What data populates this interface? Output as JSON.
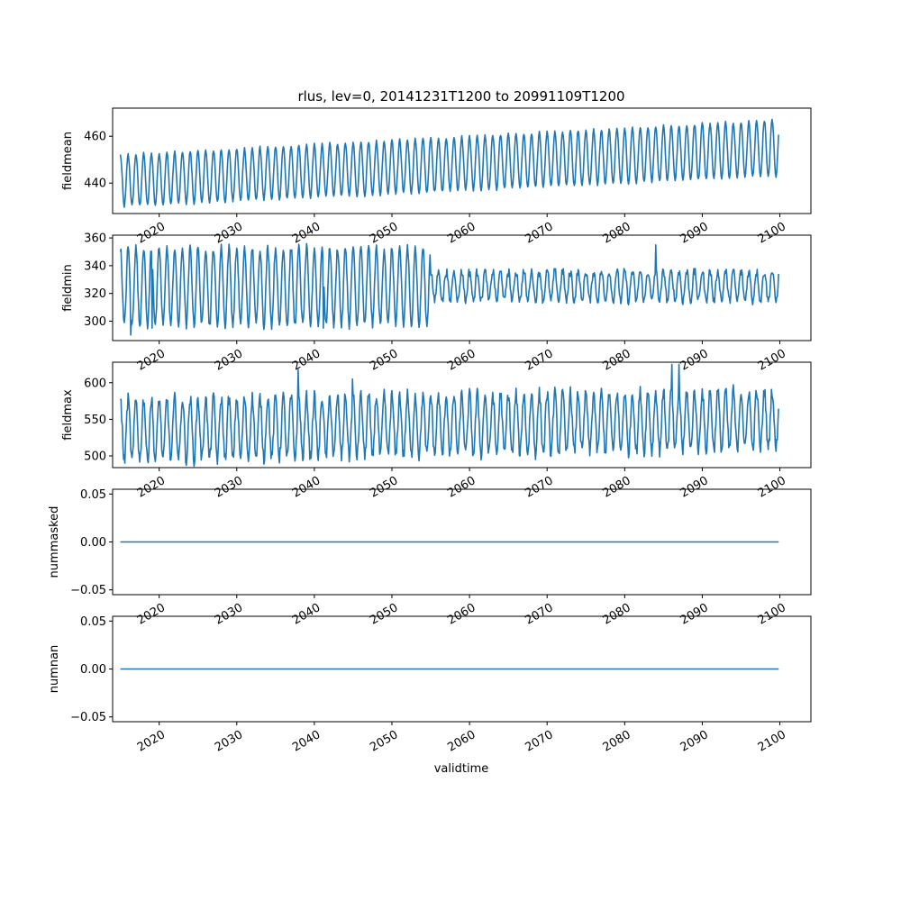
{
  "figure": {
    "title": "rlus, lev=0, 20141231T1200 to 20991109T1200",
    "xlabel": "validtime",
    "line_color": "#1f77b4"
  },
  "chart_data": [
    {
      "type": "line",
      "ylabel": "fieldmean",
      "xlim": [
        2014.0,
        2104.0
      ],
      "ylim": [
        427,
        472
      ],
      "yticks": [
        440,
        460
      ],
      "ytick_labels": [
        "440",
        "460"
      ],
      "xticks": [
        2020,
        2030,
        2040,
        2050,
        2060,
        2070,
        2080,
        2090,
        2100
      ],
      "xtick_labels": [
        "2020",
        "2030",
        "2040",
        "2050",
        "2060",
        "2070",
        "2080",
        "2090",
        "2100"
      ],
      "series_model": {
        "kind": "seasonal",
        "start": 2015.0,
        "end": 2099.85,
        "samples_per_year": 12,
        "base_start": 441,
        "base_end": 455,
        "amp_start": 11,
        "amp_end": 12,
        "noise": 0.6,
        "spikes": []
      }
    },
    {
      "type": "line",
      "ylabel": "fieldmin",
      "xlim": [
        2014.0,
        2104.0
      ],
      "ylim": [
        286,
        362
      ],
      "yticks": [
        300,
        320,
        340,
        360
      ],
      "ytick_labels": [
        "300",
        "320",
        "340",
        "360"
      ],
      "xticks": [
        2020,
        2030,
        2040,
        2050,
        2060,
        2070,
        2080,
        2090,
        2100
      ],
      "xtick_labels": [
        "2020",
        "2030",
        "2040",
        "2050",
        "2060",
        "2070",
        "2080",
        "2090",
        "2100"
      ],
      "series_model": {
        "kind": "fieldmin",
        "start": 2015.0,
        "end": 2099.85,
        "samples_per_year": 12,
        "early_base": 325,
        "early_amp": 28,
        "break_year": 2055,
        "late_base": 326,
        "late_amp": 9,
        "noise": 3,
        "spikes": [
          [
            2084.0,
            355
          ],
          [
            2016.3,
            290
          ],
          [
            2019.1,
            295
          ],
          [
            2041.2,
            295
          ]
        ]
      }
    },
    {
      "type": "line",
      "ylabel": "fieldmax",
      "xlim": [
        2014.0,
        2104.0
      ],
      "ylim": [
        484,
        628
      ],
      "yticks": [
        500,
        550,
        600
      ],
      "ytick_labels": [
        "500",
        "550",
        "600"
      ],
      "xticks": [
        2020,
        2030,
        2040,
        2050,
        2060,
        2070,
        2080,
        2090,
        2100
      ],
      "xtick_labels": [
        "2020",
        "2030",
        "2040",
        "2050",
        "2060",
        "2070",
        "2080",
        "2090",
        "2100"
      ],
      "series_model": {
        "kind": "seasonal",
        "start": 2015.0,
        "end": 2099.85,
        "samples_per_year": 12,
        "base_start": 535,
        "base_end": 550,
        "amp_start": 42,
        "amp_end": 40,
        "noise": 9,
        "spikes": [
          [
            2037.9,
            618
          ],
          [
            2044.9,
            605
          ],
          [
            2086.1,
            625
          ],
          [
            2087.0,
            625
          ],
          [
            2015.6,
            490
          ]
        ]
      }
    },
    {
      "type": "line",
      "ylabel": "nummasked",
      "xlim": [
        2014.0,
        2104.0
      ],
      "ylim": [
        -0.055,
        0.055
      ],
      "yticks": [
        -0.05,
        0.0,
        0.05
      ],
      "ytick_labels": [
        "−0.05",
        "0.00",
        "0.05"
      ],
      "xticks": [
        2020,
        2030,
        2040,
        2050,
        2060,
        2070,
        2080,
        2090,
        2100
      ],
      "xtick_labels": [
        "2020",
        "2030",
        "2040",
        "2050",
        "2060",
        "2070",
        "2080",
        "2090",
        "2100"
      ],
      "x": [
        2015.0,
        2099.85
      ],
      "values": [
        0.0,
        0.0
      ]
    },
    {
      "type": "line",
      "ylabel": "numnan",
      "xlim": [
        2014.0,
        2104.0
      ],
      "ylim": [
        -0.055,
        0.055
      ],
      "yticks": [
        -0.05,
        0.0,
        0.05
      ],
      "ytick_labels": [
        "−0.05",
        "0.00",
        "0.05"
      ],
      "xticks": [
        2020,
        2030,
        2040,
        2050,
        2060,
        2070,
        2080,
        2090,
        2100
      ],
      "xtick_labels": [
        "2020",
        "2030",
        "2040",
        "2050",
        "2060",
        "2070",
        "2080",
        "2090",
        "2100"
      ],
      "x": [
        2015.0,
        2099.85
      ],
      "values": [
        0.0,
        0.0
      ]
    }
  ]
}
